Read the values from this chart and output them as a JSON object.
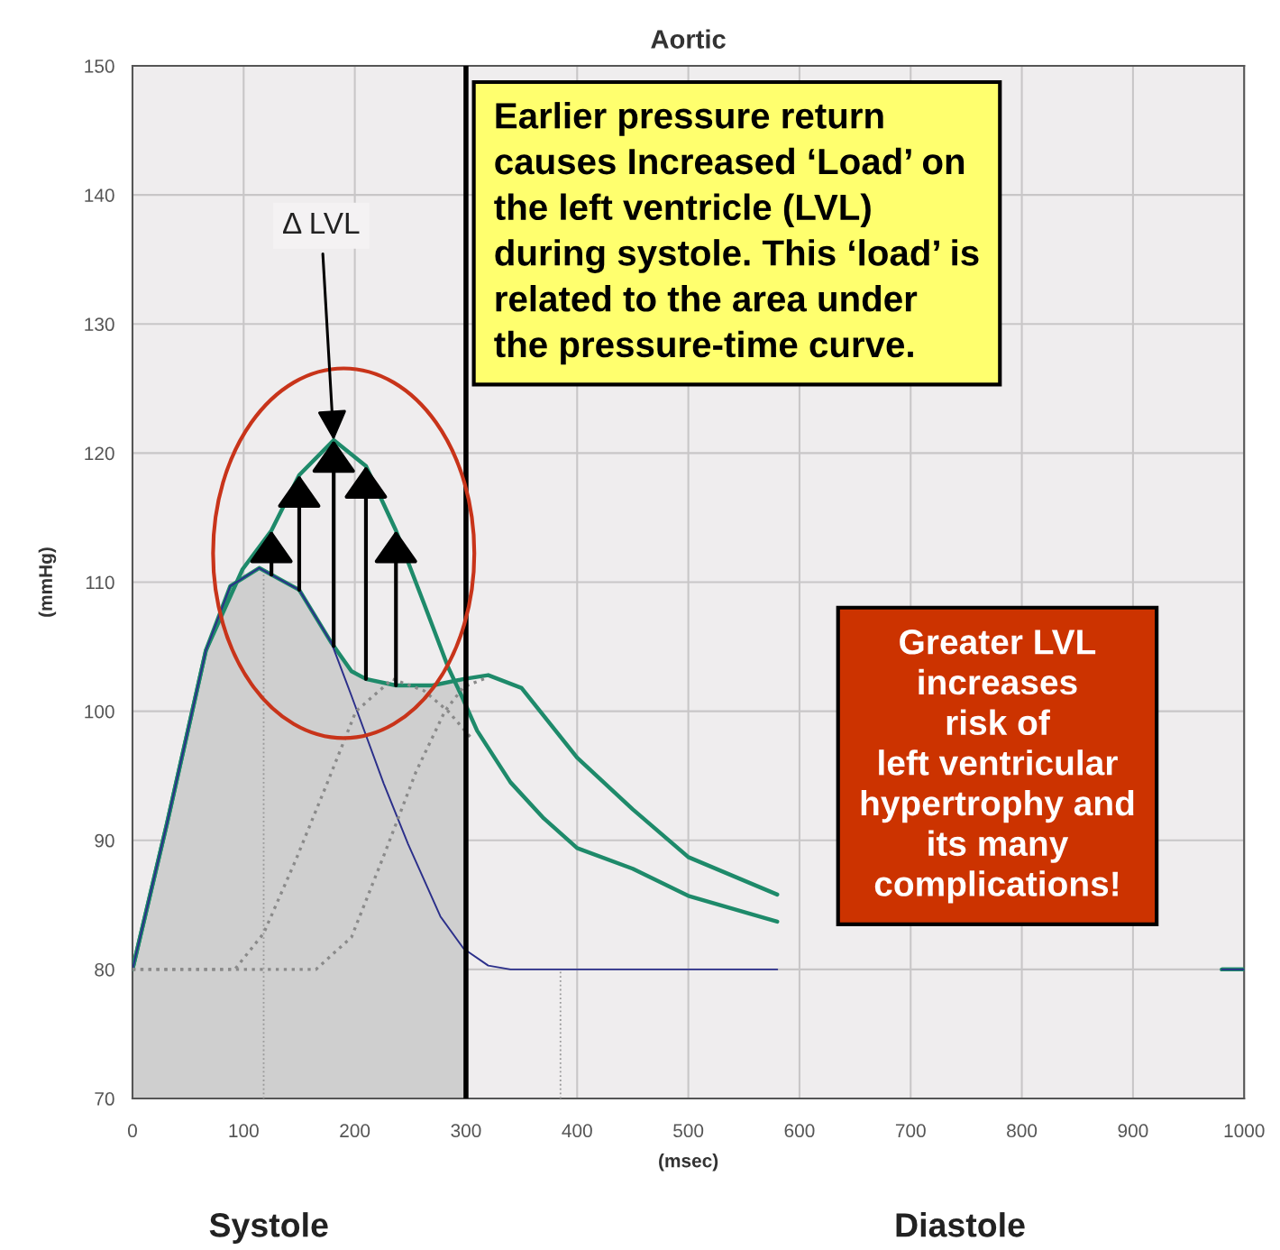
{
  "chart_data": {
    "type": "line",
    "title": "Aortic",
    "xlabel": "(msec)",
    "ylabel": "(mmHg)",
    "xlim": [
      0,
      1000
    ],
    "xticks": [
      0,
      100,
      200,
      300,
      400,
      500,
      600,
      700,
      800,
      900,
      1000
    ],
    "ylim": [
      70,
      150
    ],
    "yticks": [
      70,
      80,
      90,
      100,
      110,
      120,
      130,
      140,
      150
    ],
    "grid": true,
    "legend": false,
    "series": [
      {
        "type": "area",
        "color": "#cfcfcf",
        "x": [
          0,
          31,
          66,
          88,
          114,
          150,
          179,
          197,
          210,
          237,
          270,
          298,
          300
        ],
        "values": [
          80,
          91.3,
          104.7,
          109.7,
          111.1,
          109.4,
          105.3,
          103.1,
          102.5,
          102.0,
          102.0,
          102.5,
          102.5
        ]
      },
      {
        "color": "#1e8a6a",
        "x": [
          0,
          31,
          66,
          88,
          114,
          150,
          179,
          197,
          210,
          237,
          270,
          298,
          320,
          350,
          400,
          450,
          500,
          580,
          590,
          980,
          1000
        ],
        "values": [
          80,
          91.3,
          104.7,
          109.7,
          111.1,
          109.4,
          105.3,
          103.1,
          102.5,
          102.0,
          102.0,
          102.5,
          102.8,
          101.8,
          96.4,
          92.4,
          88.7,
          85.8,
          null,
          80,
          80
        ]
      },
      {
        "color": "#1e8a6a",
        "x": [
          0,
          31,
          66,
          99,
          125,
          150,
          181,
          210,
          237,
          262,
          284,
          296,
          310,
          340,
          370,
          400,
          450,
          500,
          580,
          590,
          980,
          1000
        ],
        "values": [
          80,
          91.3,
          104.7,
          111.0,
          114.0,
          118.3,
          121.0,
          119.0,
          114.0,
          108.4,
          103.4,
          101.2,
          98.5,
          94.5,
          91.7,
          89.4,
          87.8,
          85.7,
          83.7,
          null,
          80,
          80
        ]
      },
      {
        "color": "#2b2f8a",
        "x": [
          0,
          31,
          66,
          88,
          114,
          150,
          179,
          197,
          226,
          248,
          277,
          298,
          320,
          340,
          580,
          590,
          980,
          1000
        ],
        "values": [
          80,
          91.3,
          104.7,
          109.7,
          111.1,
          109.4,
          105.3,
          101.2,
          94.4,
          89.7,
          84.1,
          81.6,
          80.3,
          80,
          80,
          null,
          80,
          80
        ]
      },
      {
        "color": "#8a8a8a",
        "line_style": "dotted",
        "x": [
          0,
          92,
          118,
          147,
          175,
          201,
          234,
          262,
          284,
          306
        ],
        "values": [
          80,
          80,
          82.8,
          88.5,
          94.4,
          100.0,
          102.5,
          101.6,
          100.0,
          97.8
        ]
      },
      {
        "color": "#8a8a8a",
        "line_style": "dotted",
        "x": [
          0,
          165,
          197,
          226,
          255,
          281,
          298,
          319
        ],
        "values": [
          80,
          80,
          82.5,
          88.8,
          95.3,
          100.0,
          101.9,
          102.6
        ]
      }
    ],
    "ref_lines": [
      {
        "axis": "x",
        "value": 300,
        "color": "#000000",
        "line_style": "solid"
      },
      {
        "axis": "x",
        "value": 118,
        "color": "#9a9a9a",
        "line_style": "dotted"
      },
      {
        "axis": "x",
        "value": 385,
        "color": "#9a9a9a",
        "line_style": "dotted"
      }
    ],
    "annotations": [
      {
        "text": "Δ LVL",
        "x": 181,
        "y": 121
      },
      "Earlier pressure return\ncauses Increased ‘Load’ on\nthe left ventricle (LVL)\nduring systole. This ‘load’ is\nrelated to the area under\nthe pressure-time curve.",
      "Greater LVL\nincreases\nrisk of\nleft ventricular\nhypertrophy and\nits many\ncomplications!",
      "Systole",
      "Diastole"
    ]
  }
}
